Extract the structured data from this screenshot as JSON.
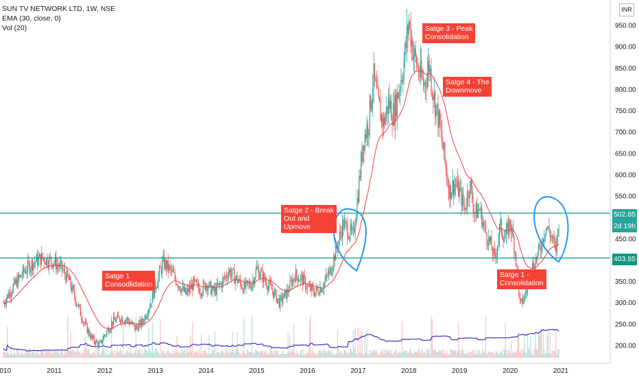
{
  "legend": {
    "symbol": "SUN TV NETWORK LTD, 1W, NSE",
    "ema": "EMA (30, close, 0)",
    "vol": "Vol (20)"
  },
  "currency_badge": "INR",
  "annotations": [
    {
      "key": "s1a",
      "text": "Satge 1\nConsodlidation"
    },
    {
      "key": "s2",
      "text": "Satge 2 - Break\nOut and\nUpmove"
    },
    {
      "key": "s3",
      "text": "Satge 3 - Peak\nConsolidation"
    },
    {
      "key": "s4",
      "text": "Satge 4 - The\nDownmove"
    },
    {
      "key": "s1b",
      "text": "Satge 1 -\nConsolidation"
    }
  ],
  "price_tags": {
    "upper": {
      "value": "502.85",
      "color": "#26a69a"
    },
    "timer": {
      "value": "2d 19h",
      "color": "#26a69a"
    },
    "lower": {
      "value": "403.85",
      "color": "#089981"
    }
  },
  "colors": {
    "up": "#26a69a",
    "down": "#ef5350",
    "ema": "#f23645",
    "vol_ma": "#3f2fbf",
    "hline": "#089981",
    "circle": "#2196f3",
    "axis_text": "#131722",
    "grid": "#ffffff"
  },
  "chart_data": {
    "type": "candlestick",
    "title": "SUN TV NETWORK LTD, 1W, NSE",
    "x_ticks": [
      "2010",
      "2011",
      "2012",
      "2013",
      "2014",
      "2015",
      "2016",
      "2017",
      "2018",
      "2019",
      "2020",
      "2021"
    ],
    "y_ticks": [
      "200.00",
      "250.00",
      "300.00",
      "350.00",
      "400.00",
      "450.00",
      "500.00",
      "550.00",
      "600.00",
      "650.00",
      "700.00",
      "750.00",
      "800.00",
      "850.00",
      "900.00",
      "950.00"
    ],
    "ylim": [
      160,
      1005
    ],
    "horizontal_lines": [
      510,
      405
    ],
    "close_path": [
      [
        2010.0,
        300
      ],
      [
        2010.15,
        330
      ],
      [
        2010.3,
        355
      ],
      [
        2010.45,
        380
      ],
      [
        2010.6,
        395
      ],
      [
        2010.75,
        405
      ],
      [
        2010.9,
        400
      ],
      [
        2011.0,
        395
      ],
      [
        2011.15,
        380
      ],
      [
        2011.3,
        350
      ],
      [
        2011.45,
        300
      ],
      [
        2011.6,
        250
      ],
      [
        2011.75,
        215
      ],
      [
        2011.9,
        200
      ],
      [
        2012.0,
        225
      ],
      [
        2012.15,
        255
      ],
      [
        2012.3,
        265
      ],
      [
        2012.45,
        260
      ],
      [
        2012.6,
        240
      ],
      [
        2012.75,
        255
      ],
      [
        2012.9,
        300
      ],
      [
        2013.0,
        340
      ],
      [
        2013.15,
        395
      ],
      [
        2013.3,
        375
      ],
      [
        2013.45,
        345
      ],
      [
        2013.6,
        320
      ],
      [
        2013.75,
        345
      ],
      [
        2013.9,
        330
      ],
      [
        2014.0,
        345
      ],
      [
        2014.15,
        325
      ],
      [
        2014.3,
        345
      ],
      [
        2014.45,
        375
      ],
      [
        2014.6,
        355
      ],
      [
        2014.75,
        335
      ],
      [
        2014.9,
        345
      ],
      [
        2015.0,
        380
      ],
      [
        2015.15,
        355
      ],
      [
        2015.3,
        330
      ],
      [
        2015.45,
        300
      ],
      [
        2015.6,
        325
      ],
      [
        2015.75,
        365
      ],
      [
        2015.9,
        355
      ],
      [
        2016.0,
        335
      ],
      [
        2016.15,
        325
      ],
      [
        2016.3,
        340
      ],
      [
        2016.45,
        375
      ],
      [
        2016.6,
        440
      ],
      [
        2016.7,
        485
      ],
      [
        2016.8,
        470
      ],
      [
        2016.9,
        455
      ],
      [
        2017.0,
        560
      ],
      [
        2017.1,
        680
      ],
      [
        2017.2,
        720
      ],
      [
        2017.3,
        830
      ],
      [
        2017.4,
        760
      ],
      [
        2017.5,
        720
      ],
      [
        2017.6,
        770
      ],
      [
        2017.7,
        740
      ],
      [
        2017.8,
        800
      ],
      [
        2017.9,
        860
      ],
      [
        2018.0,
        960
      ],
      [
        2018.1,
        880
      ],
      [
        2018.2,
        840
      ],
      [
        2018.3,
        810
      ],
      [
        2018.4,
        860
      ],
      [
        2018.5,
        780
      ],
      [
        2018.6,
        720
      ],
      [
        2018.7,
        640
      ],
      [
        2018.8,
        560
      ],
      [
        2018.9,
        580
      ],
      [
        2019.0,
        560
      ],
      [
        2019.1,
        520
      ],
      [
        2019.2,
        580
      ],
      [
        2019.3,
        510
      ],
      [
        2019.4,
        520
      ],
      [
        2019.5,
        470
      ],
      [
        2019.6,
        440
      ],
      [
        2019.7,
        400
      ],
      [
        2019.8,
        480
      ],
      [
        2019.9,
        450
      ],
      [
        2020.0,
        490
      ],
      [
        2020.1,
        420
      ],
      [
        2020.2,
        290
      ],
      [
        2020.3,
        320
      ],
      [
        2020.4,
        380
      ],
      [
        2020.5,
        400
      ],
      [
        2020.6,
        430
      ],
      [
        2020.7,
        480
      ],
      [
        2020.8,
        460
      ],
      [
        2020.9,
        420
      ],
      [
        2020.97,
        502.85
      ]
    ]
  }
}
